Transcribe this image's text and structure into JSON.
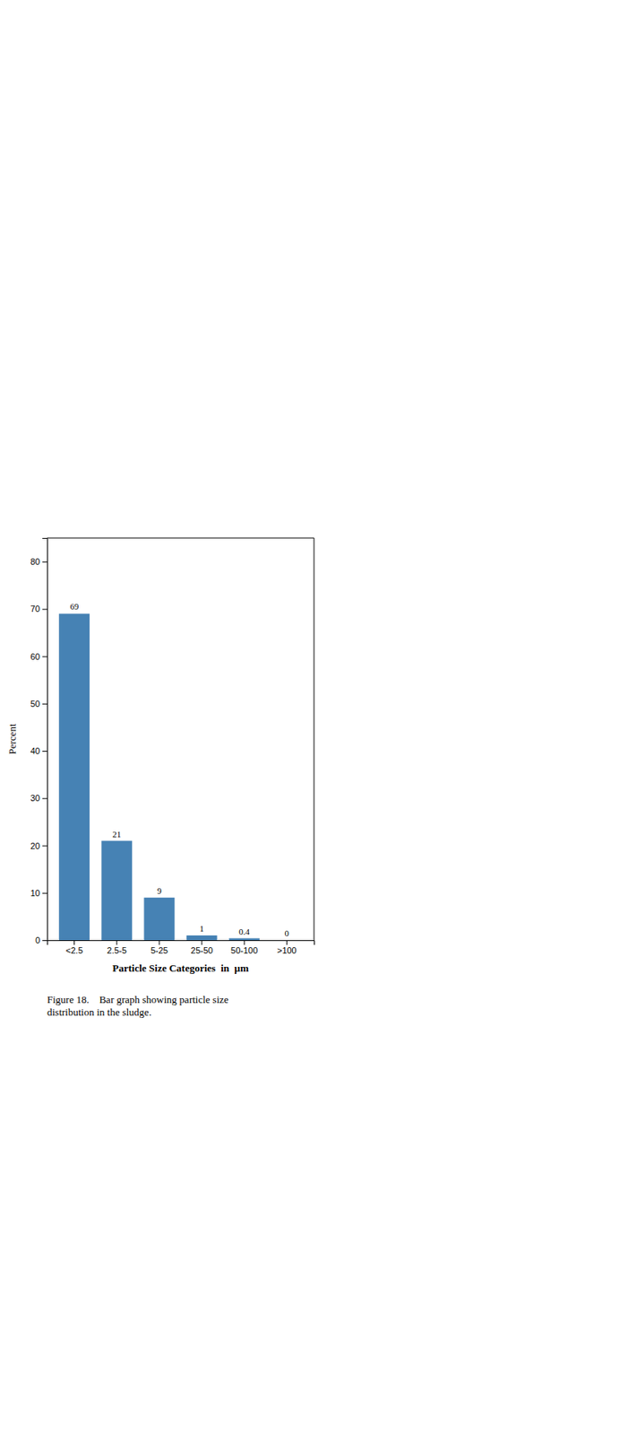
{
  "chart_data": {
    "type": "bar",
    "categories": [
      "<2.5",
      "2.5-5",
      "5-25",
      "25-50",
      "50-100",
      ">100"
    ],
    "values": [
      69,
      21,
      9,
      1,
      0.4,
      0
    ],
    "xlabel": "Particle Size Categories  in  μm",
    "ylabel": "Percent",
    "caption": "Figure 18.    Bar graph showing particle size\ndistribution in the sludge.",
    "ylim": [
      0,
      85
    ],
    "yticks": [
      0,
      10,
      20,
      30,
      40,
      50,
      60,
      70,
      80
    ],
    "grid": false,
    "data_labels": true
  }
}
